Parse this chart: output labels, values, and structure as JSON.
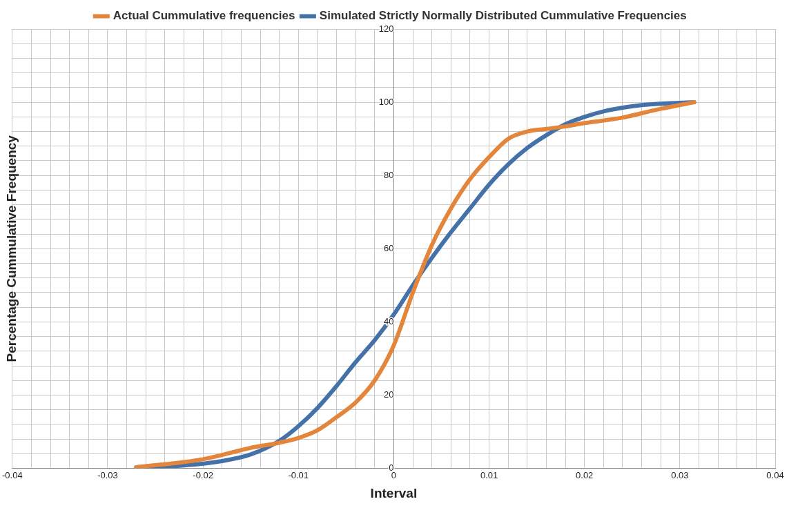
{
  "chart_data": {
    "type": "line",
    "xlabel": "Interval",
    "ylabel": "Percentage Cummulative Frequency",
    "legend": "top",
    "grid": true,
    "marker": "none",
    "line_style": "solid",
    "xlim": [
      -0.04,
      0.04
    ],
    "ylim": [
      0,
      120
    ],
    "xticks": [
      -0.04,
      {
        "value": -0.038,
        "label": null
      },
      {
        "value": -0.036,
        "label": null
      },
      {
        "value": -0.034,
        "label": null
      },
      {
        "value": -0.032,
        "label": null
      },
      -0.03,
      {
        "value": -0.028,
        "label": null
      },
      {
        "value": -0.026,
        "label": null
      },
      {
        "value": -0.024,
        "label": null
      },
      {
        "value": -0.022,
        "label": null
      },
      -0.02,
      {
        "value": -0.018,
        "label": null
      },
      {
        "value": -0.016,
        "label": null
      },
      {
        "value": -0.014,
        "label": null
      },
      {
        "value": -0.012,
        "label": null
      },
      -0.01,
      {
        "value": -0.008,
        "label": null
      },
      {
        "value": -0.006,
        "label": null
      },
      {
        "value": -0.004,
        "label": null
      },
      {
        "value": -0.002,
        "label": null
      },
      0,
      {
        "value": 0.002,
        "label": null
      },
      {
        "value": 0.004,
        "label": null
      },
      {
        "value": 0.006,
        "label": null
      },
      {
        "value": 0.008,
        "label": null
      },
      0.01,
      {
        "value": 0.012,
        "label": null
      },
      {
        "value": 0.014,
        "label": null
      },
      {
        "value": 0.016,
        "label": null
      },
      {
        "value": 0.018,
        "label": null
      },
      0.02,
      {
        "value": 0.022,
        "label": null
      },
      {
        "value": 0.024,
        "label": null
      },
      {
        "value": 0.026,
        "label": null
      },
      {
        "value": 0.028,
        "label": null
      },
      0.03,
      {
        "value": 0.032,
        "label": null
      },
      {
        "value": 0.034,
        "label": null
      },
      {
        "value": 0.036,
        "label": null
      },
      {
        "value": 0.038,
        "label": null
      },
      0.04
    ],
    "yticks": [
      0,
      {
        "value": 4,
        "label": null
      },
      {
        "value": 8,
        "label": null
      },
      {
        "value": 12,
        "label": null
      },
      {
        "value": 16,
        "label": null
      },
      20,
      {
        "value": 24,
        "label": null
      },
      {
        "value": 28,
        "label": null
      },
      {
        "value": 32,
        "label": null
      },
      {
        "value": 36,
        "label": null
      },
      40,
      {
        "value": 44,
        "label": null
      },
      {
        "value": 48,
        "label": null
      },
      {
        "value": 52,
        "label": null
      },
      {
        "value": 56,
        "label": null
      },
      60,
      {
        "value": 64,
        "label": null
      },
      {
        "value": 68,
        "label": null
      },
      {
        "value": 72,
        "label": null
      },
      {
        "value": 76,
        "label": null
      },
      80,
      {
        "value": 84,
        "label": null
      },
      {
        "value": 88,
        "label": null
      },
      {
        "value": 92,
        "label": null
      },
      {
        "value": 96,
        "label": null
      },
      100,
      {
        "value": 104,
        "label": null
      },
      {
        "value": 108,
        "label": null
      },
      {
        "value": 112,
        "label": null
      },
      {
        "value": 116,
        "label": null
      },
      120
    ],
    "series": [
      {
        "name": "Actual Cummulative frequencies",
        "color": "#e3853a",
        "x": [
          -0.027,
          -0.02,
          -0.015,
          -0.012,
          -0.01,
          -0.008,
          -0.006,
          -0.004,
          -0.002,
          0,
          0.002,
          0.004,
          0.006,
          0.008,
          0.01,
          0.012,
          0.014,
          0.016,
          0.018,
          0.02,
          0.022,
          0.024,
          0.026,
          0.028,
          0.0315
        ],
        "values": [
          0.3,
          2.5,
          5.6,
          7,
          8.3,
          10.4,
          14,
          18,
          24,
          33.6,
          48,
          61,
          71,
          79,
          85,
          90,
          92,
          92.7,
          93.4,
          94.3,
          95,
          95.8,
          97,
          98.2,
          100
        ]
      },
      {
        "name": "Simulated Strictly Normally Distributed Cummulative Frequencies",
        "color": "#4472a8",
        "x": [
          -0.027,
          -0.022,
          -0.018,
          -0.015,
          -0.012,
          -0.01,
          -0.008,
          -0.006,
          -0.004,
          -0.002,
          0,
          0.002,
          0.004,
          0.006,
          0.008,
          0.01,
          0.012,
          0.014,
          0.016,
          0.018,
          0.02,
          0.022,
          0.024,
          0.026,
          0.028,
          0.0315
        ],
        "values": [
          0.3,
          0.8,
          2,
          3.8,
          7.5,
          11.5,
          16.5,
          22.5,
          29,
          35,
          42,
          50,
          57.5,
          64.5,
          71,
          77.5,
          83,
          87.5,
          91,
          94,
          96,
          97.5,
          98.5,
          99.2,
          99.6,
          100
        ]
      }
    ]
  }
}
